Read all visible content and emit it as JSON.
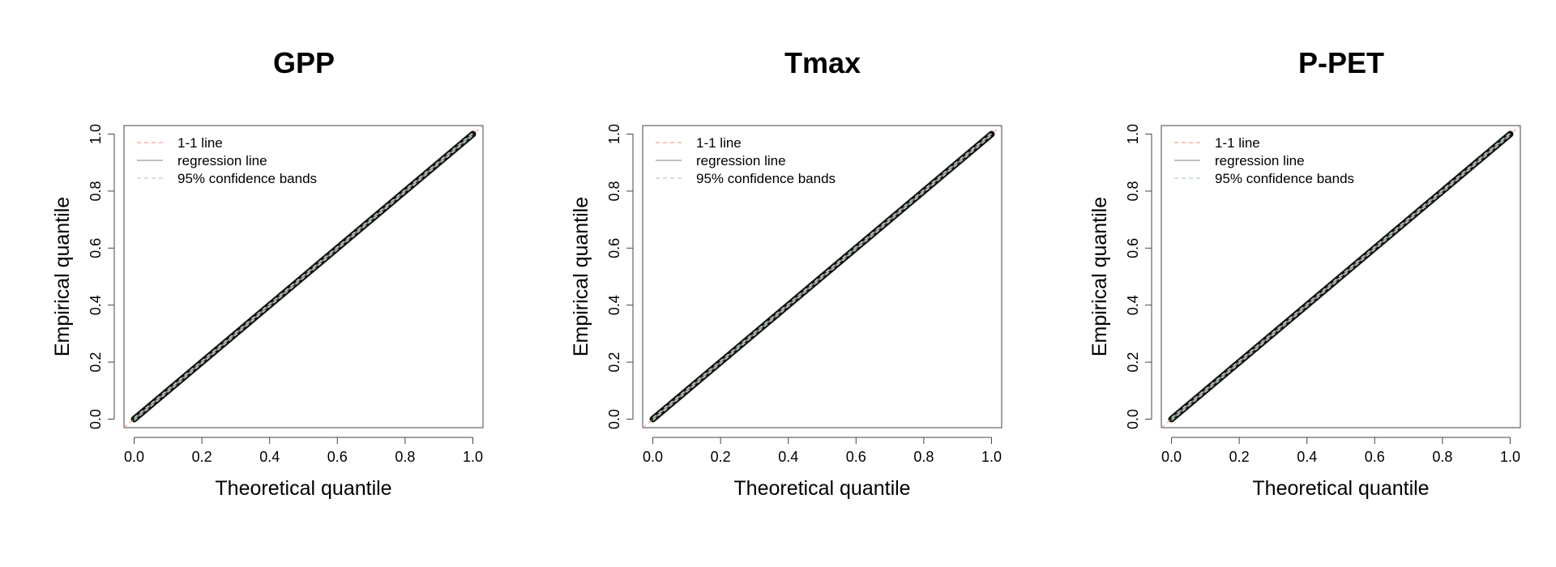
{
  "colors": {
    "one_to_one": "#f4a582",
    "regression": "#9a9a9a",
    "bands": "#b7d7b7",
    "points": "#111111",
    "frame": "#444444"
  },
  "chart_data": [
    {
      "type": "scatter",
      "title": "GPP",
      "xlabel": "Theoretical quantile",
      "ylabel": "Empirical quantile",
      "xlim": [
        -0.03,
        1.03
      ],
      "ylim": [
        -0.03,
        1.03
      ],
      "xticks": [
        "0.0",
        "0.2",
        "0.4",
        "0.6",
        "0.8",
        "1.0"
      ],
      "yticks": [
        "0.0",
        "0.2",
        "0.4",
        "0.6",
        "0.8",
        "1.0"
      ],
      "grid": false,
      "legend_position": "top-left",
      "legend": [
        "1-1 line",
        "regression line",
        "95% confidence bands"
      ],
      "series": [
        {
          "name": "1-1 line",
          "style": "dashed",
          "x": [
            -0.03,
            1.03
          ],
          "y": [
            -0.03,
            1.03
          ]
        },
        {
          "name": "regression line",
          "style": "solid",
          "x": [
            0,
            1
          ],
          "y": [
            0,
            1
          ]
        },
        {
          "name": "95% confidence bands",
          "style": "dashed",
          "x": [
            0,
            1
          ],
          "y_lower": [
            -0.005,
            0.995
          ],
          "y_upper": [
            0.005,
            1.005
          ]
        }
      ],
      "points": {
        "x_range": [
          0,
          1
        ],
        "y_range": [
          0,
          1
        ],
        "relation": "empirical ≈ theoretical"
      }
    },
    {
      "type": "scatter",
      "title": "Tmax",
      "xlabel": "Theoretical quantile",
      "ylabel": "Empirical quantile",
      "xlim": [
        -0.03,
        1.03
      ],
      "ylim": [
        -0.03,
        1.03
      ],
      "xticks": [
        "0.0",
        "0.2",
        "0.4",
        "0.6",
        "0.8",
        "1.0"
      ],
      "yticks": [
        "0.0",
        "0.2",
        "0.4",
        "0.6",
        "0.8",
        "1.0"
      ],
      "grid": false,
      "legend_position": "top-left",
      "legend": [
        "1-1 line",
        "regression line",
        "95% confidence bands"
      ],
      "series": [
        {
          "name": "1-1 line",
          "style": "dashed",
          "x": [
            -0.03,
            1.03
          ],
          "y": [
            -0.03,
            1.03
          ]
        },
        {
          "name": "regression line",
          "style": "solid",
          "x": [
            0,
            1
          ],
          "y": [
            0,
            1
          ]
        },
        {
          "name": "95% confidence bands",
          "style": "dashed",
          "x": [
            0,
            1
          ],
          "y_lower": [
            -0.005,
            0.995
          ],
          "y_upper": [
            0.005,
            1.005
          ]
        }
      ],
      "points": {
        "x_range": [
          0,
          1
        ],
        "y_range": [
          0,
          1
        ],
        "relation": "empirical ≈ theoretical"
      }
    },
    {
      "type": "scatter",
      "title": "P-PET",
      "xlabel": "Theoretical quantile",
      "ylabel": "Empirical quantile",
      "xlim": [
        -0.03,
        1.03
      ],
      "ylim": [
        -0.03,
        1.03
      ],
      "xticks": [
        "0.0",
        "0.2",
        "0.4",
        "0.6",
        "0.8",
        "1.0"
      ],
      "yticks": [
        "0.0",
        "0.2",
        "0.4",
        "0.6",
        "0.8",
        "1.0"
      ],
      "grid": false,
      "legend_position": "top-left",
      "legend": [
        "1-1 line",
        "regression line",
        "95% confidence bands"
      ],
      "series": [
        {
          "name": "1-1 line",
          "style": "dashed",
          "x": [
            -0.03,
            1.03
          ],
          "y": [
            -0.03,
            1.03
          ]
        },
        {
          "name": "regression line",
          "style": "solid",
          "x": [
            0,
            1
          ],
          "y": [
            0,
            1
          ]
        },
        {
          "name": "95% confidence bands",
          "style": "dashed",
          "x": [
            0,
            1
          ],
          "y_lower": [
            -0.005,
            0.995
          ],
          "y_upper": [
            0.005,
            1.005
          ]
        }
      ],
      "points": {
        "x_range": [
          0,
          1
        ],
        "y_range": [
          0,
          1
        ],
        "relation": "empirical ≈ theoretical"
      }
    }
  ]
}
